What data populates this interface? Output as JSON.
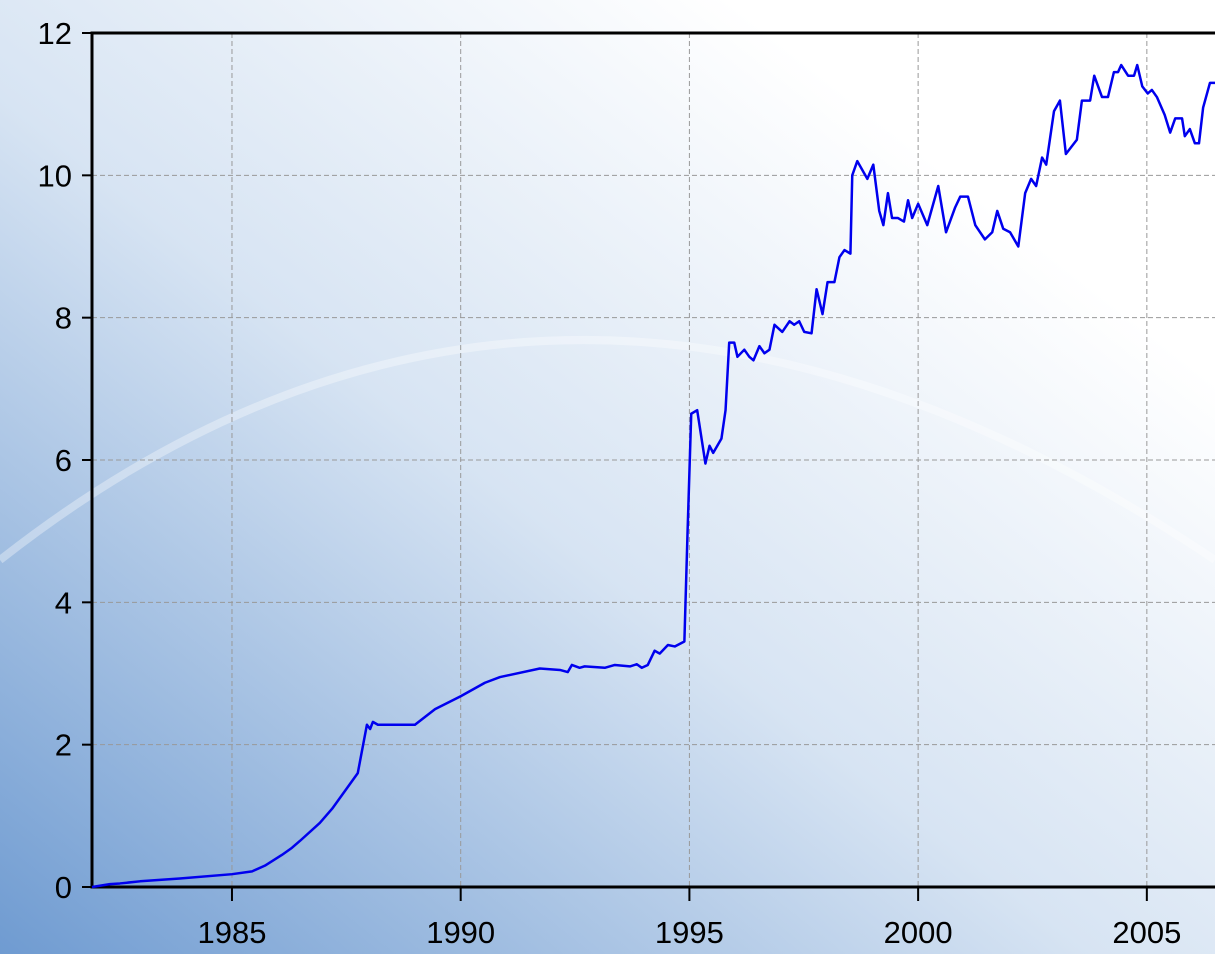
{
  "chart_data": {
    "type": "line",
    "x": [
      1981.94,
      1982.33,
      1982.55,
      1982.99,
      1983.86,
      1985.0,
      1985.44,
      1985.72,
      1986.09,
      1986.31,
      1986.49,
      1986.92,
      1987.19,
      1987.75,
      1987.95,
      1988.02,
      1988.08,
      1988.19,
      1989.0,
      1989.44,
      1990.0,
      1990.53,
      1990.86,
      1991.73,
      1992.17,
      1992.34,
      1992.43,
      1992.6,
      1992.71,
      1993.15,
      1993.37,
      1993.7,
      1993.85,
      1993.96,
      1994.09,
      1994.24,
      1994.35,
      1994.53,
      1994.68,
      1994.89,
      1994.96,
      1995.04,
      1995.17,
      1995.35,
      1995.44,
      1995.52,
      1995.7,
      1995.79,
      1995.87,
      1995.98,
      1996.05,
      1996.2,
      1996.31,
      1996.4,
      1996.53,
      1996.64,
      1996.75,
      1996.86,
      1997.03,
      1997.19,
      1997.29,
      1997.4,
      1997.51,
      1997.67,
      1997.78,
      1997.91,
      1998.02,
      1998.17,
      1998.28,
      1998.39,
      1998.52,
      1998.56,
      1998.67,
      1998.89,
      1999.02,
      1999.15,
      1999.24,
      1999.34,
      1999.43,
      1999.56,
      1999.69,
      1999.78,
      1999.87,
      2000.0,
      2000.2,
      2000.44,
      2000.61,
      2000.81,
      2000.92,
      2001.09,
      2001.25,
      2001.46,
      2001.62,
      2001.73,
      2001.86,
      2002.01,
      2002.19,
      2002.34,
      2002.47,
      2002.58,
      2002.71,
      2002.8,
      2002.97,
      2003.1,
      2003.23,
      2003.47,
      2003.58,
      2003.76,
      2003.85,
      2004.02,
      2004.15,
      2004.28,
      2004.37,
      2004.44,
      2004.59,
      2004.72,
      2004.79,
      2004.9,
      2005.02,
      2005.11,
      2005.22,
      2005.39,
      2005.51,
      2005.62,
      2005.77,
      2005.83,
      2005.94,
      2006.05,
      2006.14,
      2006.23,
      2006.38,
      2006.49
    ],
    "series": [
      {
        "color": "#0000ee",
        "values": [
          0.0,
          0.04,
          0.05,
          0.08,
          0.12,
          0.18,
          0.22,
          0.3,
          0.45,
          0.55,
          0.65,
          0.9,
          1.1,
          1.6,
          2.28,
          2.22,
          2.32,
          2.28,
          2.28,
          2.5,
          2.68,
          2.87,
          2.95,
          3.07,
          3.05,
          3.02,
          3.12,
          3.08,
          3.1,
          3.08,
          3.12,
          3.1,
          3.13,
          3.08,
          3.12,
          3.32,
          3.28,
          3.4,
          3.38,
          3.45,
          5.0,
          6.65,
          6.7,
          5.95,
          6.2,
          6.1,
          6.3,
          6.7,
          7.65,
          7.65,
          7.45,
          7.55,
          7.45,
          7.4,
          7.6,
          7.5,
          7.55,
          7.9,
          7.8,
          7.95,
          7.9,
          7.95,
          7.8,
          7.78,
          8.4,
          8.05,
          8.5,
          8.5,
          8.85,
          8.95,
          8.9,
          10.0,
          10.2,
          9.95,
          10.15,
          9.5,
          9.3,
          9.75,
          9.4,
          9.4,
          9.35,
          9.65,
          9.4,
          9.6,
          9.3,
          9.85,
          9.2,
          9.55,
          9.7,
          9.7,
          9.3,
          9.1,
          9.2,
          9.5,
          9.25,
          9.2,
          9.0,
          9.75,
          9.95,
          9.85,
          10.25,
          10.15,
          10.9,
          11.05,
          10.3,
          10.5,
          11.05,
          11.05,
          11.4,
          11.1,
          11.1,
          11.45,
          11.45,
          11.55,
          11.4,
          11.4,
          11.55,
          11.25,
          11.15,
          11.2,
          11.1,
          10.85,
          10.6,
          10.8,
          10.8,
          10.55,
          10.65,
          10.45,
          10.45,
          10.95,
          11.3,
          11.3
        ]
      }
    ],
    "xlim": [
      1981.94,
      2006.49
    ],
    "xticks": [
      1985,
      1990,
      1995,
      2000,
      2005
    ],
    "ylim": [
      0,
      12
    ],
    "yticks": [
      0,
      2,
      4,
      6,
      8,
      10,
      12
    ],
    "grid": true
  }
}
